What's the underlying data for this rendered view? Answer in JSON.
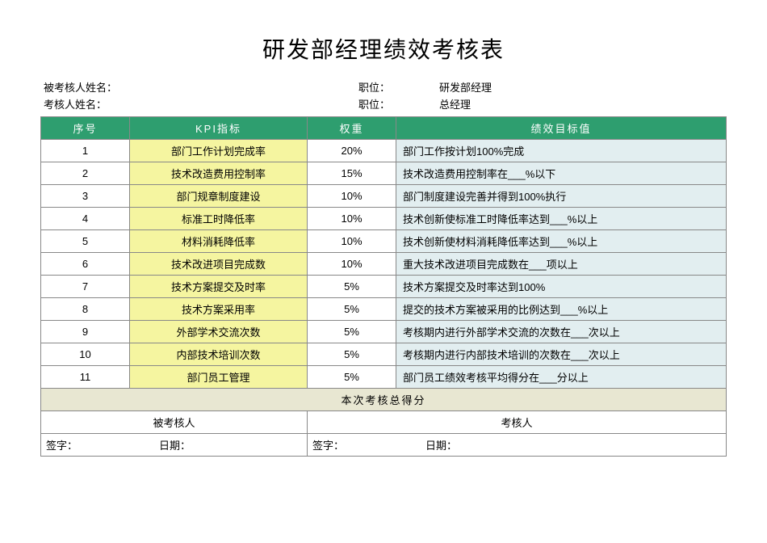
{
  "title": "研发部经理绩效考核表",
  "meta": {
    "row1": {
      "left_label": "被考核人姓名：",
      "mid_label": "职位：",
      "right_value": "研发部经理"
    },
    "row2": {
      "left_label": "考核人姓名：",
      "mid_label": "职位：",
      "right_value": "总经理"
    }
  },
  "headers": {
    "seq": "序号",
    "kpi": "KPI指标",
    "weight": "权重",
    "target": "绩效目标值"
  },
  "rows": [
    {
      "seq": "1",
      "kpi": "部门工作计划完成率",
      "weight": "20%",
      "target": "部门工作按计划100%完成"
    },
    {
      "seq": "2",
      "kpi": "技术改造费用控制率",
      "weight": "15%",
      "target": "技术改造费用控制率在___%以下"
    },
    {
      "seq": "3",
      "kpi": "部门规章制度建设",
      "weight": "10%",
      "target": "部门制度建设完善并得到100%执行"
    },
    {
      "seq": "4",
      "kpi": "标准工时降低率",
      "weight": "10%",
      "target": "技术创新使标准工时降低率达到___%以上"
    },
    {
      "seq": "5",
      "kpi": "材料消耗降低率",
      "weight": "10%",
      "target": "技术创新使材料消耗降低率达到___%以上"
    },
    {
      "seq": "6",
      "kpi": "技术改进项目完成数",
      "weight": "10%",
      "target": "重大技术改进项目完成数在___项以上"
    },
    {
      "seq": "7",
      "kpi": "技术方案提交及时率",
      "weight": "5%",
      "target": "技术方案提交及时率达到100%"
    },
    {
      "seq": "8",
      "kpi": "技术方案采用率",
      "weight": "5%",
      "target": "提交的技术方案被采用的比例达到___%以上"
    },
    {
      "seq": "9",
      "kpi": "外部学术交流次数",
      "weight": "5%",
      "target": "考核期内进行外部学术交流的次数在___次以上"
    },
    {
      "seq": "10",
      "kpi": "内部技术培训次数",
      "weight": "5%",
      "target": "考核期内进行内部技术培训的次数在___次以上"
    },
    {
      "seq": "11",
      "kpi": "部门员工管理",
      "weight": "5%",
      "target": "部门员工绩效考核平均得分在___分以上"
    }
  ],
  "total_label": "本次考核总得分",
  "sig": {
    "evaluatee": "被考核人",
    "evaluator": "考核人",
    "sign_label": "签字：",
    "date_label": "日期："
  },
  "colors": {
    "header_bg": "#2e9e6f",
    "header_fg": "#ffffff",
    "kpi_bg": "#f5f5a0",
    "target_bg": "#e2eef0",
    "total_bg": "#e8e7d2",
    "border": "#888888"
  }
}
